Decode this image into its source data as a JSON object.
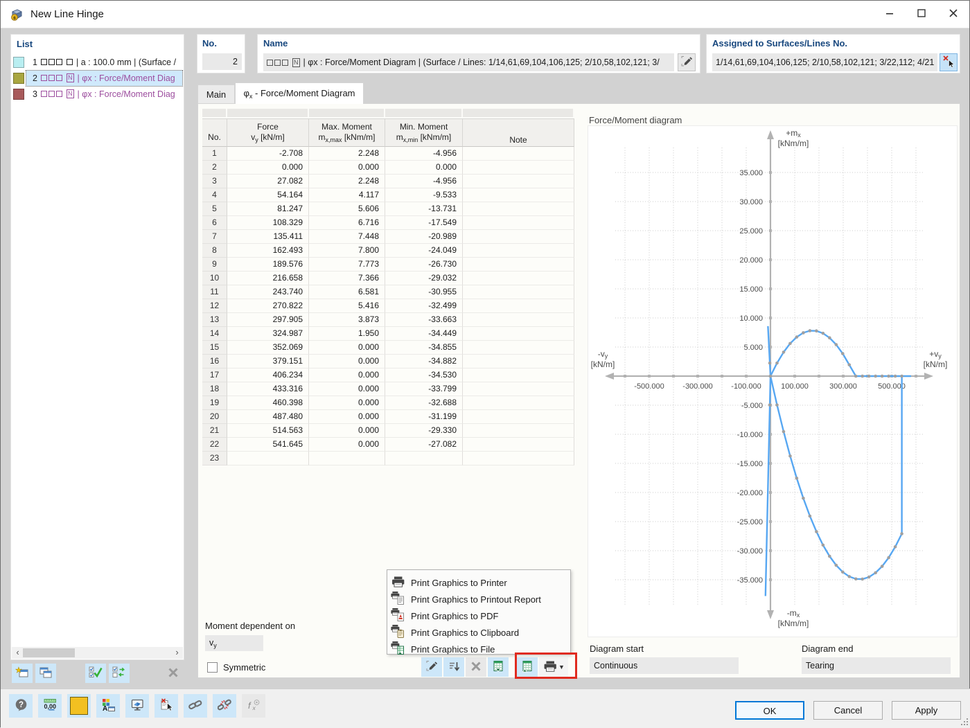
{
  "window": {
    "title": "New Line Hinge",
    "controls": [
      {
        "icon": "minimize-icon",
        "name": "minimize-button"
      },
      {
        "icon": "maximize-icon",
        "name": "maximize-button"
      },
      {
        "icon": "close-icon",
        "name": "close-button"
      }
    ]
  },
  "list": {
    "label": "List",
    "items": [
      {
        "num": "1",
        "swatch": "#b9eef1",
        "tag": "box",
        "text": "| a : 100.0 mm | (Surface /",
        "color": "#222222",
        "selected": false
      },
      {
        "num": "2",
        "swatch": "#a9a640",
        "tag": "N",
        "text": "| φx : Force/Moment Diag",
        "color": "#9c4d9e",
        "selected": true
      },
      {
        "num": "3",
        "swatch": "#a85a5b",
        "tag": "N",
        "text": "| φx : Force/Moment Diag",
        "color": "#9c4d9e",
        "selected": false
      }
    ]
  },
  "list_toolbar": [
    {
      "icon": "new-item-icon",
      "name": "new-hinge-button"
    },
    {
      "icon": "copy-item-icon",
      "name": "copy-hinge-button"
    },
    {
      "icon": "check-all-icon",
      "name": "select-all-button"
    },
    {
      "icon": "toggle-check-icon",
      "name": "toggle-selection-button"
    },
    {
      "icon": "delete-icon",
      "name": "delete-hinge-button",
      "disabled": true
    }
  ],
  "no_panel": {
    "label": "No.",
    "value": "2"
  },
  "name_panel": {
    "label": "Name",
    "tag": "N",
    "value": "| φx : Force/Moment Diagram | (Surface / Lines: 1/14,61,69,104,106,125; 2/10,58,102,121; 3/"
  },
  "assigned_panel": {
    "label": "Assigned to Surfaces/Lines No.",
    "value": "1/14,61,69,104,106,125; 2/10,58,102,121; 3/22,112; 4/21"
  },
  "tabs": [
    {
      "label": "Main"
    },
    {
      "pre": "φ",
      "sub": "x",
      "label": " - Force/Moment Diagram"
    }
  ],
  "table": {
    "columns": [
      {
        "l2": "No."
      },
      {
        "l1": "Force",
        "sym": "v",
        "sub": "y",
        "unit": "[kN/m]"
      },
      {
        "l1": "Max. Moment",
        "sym": "m",
        "sub": "x,max",
        "unit": "[kNm/m]"
      },
      {
        "l1": "Min. Moment",
        "sym": "m",
        "sub": "x,min",
        "unit": "[kNm/m]"
      },
      {
        "l2": "Note"
      }
    ],
    "rows": [
      [
        "1",
        "-2.708",
        "2.248",
        "-4.956",
        ""
      ],
      [
        "2",
        "0.000",
        "0.000",
        "0.000",
        ""
      ],
      [
        "3",
        "27.082",
        "2.248",
        "-4.956",
        ""
      ],
      [
        "4",
        "54.164",
        "4.117",
        "-9.533",
        ""
      ],
      [
        "5",
        "81.247",
        "5.606",
        "-13.731",
        ""
      ],
      [
        "6",
        "108.329",
        "6.716",
        "-17.549",
        ""
      ],
      [
        "7",
        "135.411",
        "7.448",
        "-20.989",
        ""
      ],
      [
        "8",
        "162.493",
        "7.800",
        "-24.049",
        ""
      ],
      [
        "9",
        "189.576",
        "7.773",
        "-26.730",
        ""
      ],
      [
        "10",
        "216.658",
        "7.366",
        "-29.032",
        ""
      ],
      [
        "11",
        "243.740",
        "6.581",
        "-30.955",
        ""
      ],
      [
        "12",
        "270.822",
        "5.416",
        "-32.499",
        ""
      ],
      [
        "13",
        "297.905",
        "3.873",
        "-33.663",
        ""
      ],
      [
        "14",
        "324.987",
        "1.950",
        "-34.449",
        ""
      ],
      [
        "15",
        "352.069",
        "0.000",
        "-34.855",
        ""
      ],
      [
        "16",
        "379.151",
        "0.000",
        "-34.882",
        ""
      ],
      [
        "17",
        "406.234",
        "0.000",
        "-34.530",
        ""
      ],
      [
        "18",
        "433.316",
        "0.000",
        "-33.799",
        ""
      ],
      [
        "19",
        "460.398",
        "0.000",
        "-32.688",
        ""
      ],
      [
        "20",
        "487.480",
        "0.000",
        "-31.199",
        ""
      ],
      [
        "21",
        "514.563",
        "0.000",
        "-29.330",
        ""
      ],
      [
        "22",
        "541.645",
        "0.000",
        "-27.082",
        ""
      ],
      [
        "23",
        "",
        "",
        "",
        ""
      ]
    ]
  },
  "moment_dependent": {
    "label": "Moment dependent on",
    "value_sym": "v",
    "value_sub": "y"
  },
  "symmetric": {
    "label": "Symmetric",
    "checked": false
  },
  "table_toolbar": [
    {
      "icon": "edit-note-icon",
      "name": "edit-table-button"
    },
    {
      "icon": "sort-icon",
      "name": "sort-table-button"
    },
    {
      "icon": "delete-icon",
      "name": "clear-table-button",
      "disabled": true
    },
    {
      "icon": "excel-import-icon",
      "name": "excel-import-button"
    },
    {
      "icon": "excel-export-icon",
      "name": "excel-export-button",
      "gap": 12
    },
    {
      "icon": "print-menu-icon",
      "name": "print-graphics-button",
      "caret": true
    }
  ],
  "context_menu": {
    "items": [
      {
        "icon": "print-printer-icon",
        "label": "Print Graphics to Printer"
      },
      {
        "icon": "print-report-icon",
        "label": "Print Graphics to Printout Report"
      },
      {
        "icon": "print-pdf-icon",
        "label": "Print Graphics to PDF"
      },
      {
        "icon": "print-clipboard-icon",
        "label": "Print Graphics to Clipboard"
      },
      {
        "icon": "print-file-icon",
        "label": "Print Graphics to File"
      }
    ]
  },
  "chart_data": {
    "type": "line",
    "title": "Force/Moment diagram",
    "x_axis": {
      "neg": {
        "main": "-v",
        "sub": "y"
      },
      "pos": {
        "main": "+v",
        "sub": "y"
      },
      "unit": "[kN/m]",
      "tick_labels": [
        -500,
        -300,
        -100,
        100,
        300,
        500
      ],
      "grid_min": -600,
      "grid_max": 600,
      "grid_step": 100
    },
    "y_axis": {
      "pos": {
        "main": "+m",
        "sub": "x"
      },
      "neg": {
        "main": "-m",
        "sub": "x"
      },
      "unit": "[kNm/m]",
      "tick_min": -35,
      "tick_max": 35,
      "tick_step": 5
    },
    "x": [
      -2.708,
      0,
      27.082,
      54.164,
      81.247,
      108.329,
      135.411,
      162.493,
      189.576,
      216.658,
      243.74,
      270.822,
      297.905,
      324.987,
      352.069,
      379.151,
      406.234,
      433.316,
      460.398,
      487.48,
      514.563,
      541.645
    ],
    "series": [
      {
        "name": "Max. Moment",
        "values": [
          2.248,
          0,
          2.248,
          4.117,
          5.606,
          6.716,
          7.448,
          7.8,
          7.773,
          7.366,
          6.581,
          5.416,
          3.873,
          1.95,
          0,
          0,
          0,
          0,
          0,
          0,
          0,
          0
        ]
      },
      {
        "name": "Min. Moment",
        "values": [
          -4.956,
          0,
          -4.956,
          -9.533,
          -13.731,
          -17.549,
          -20.989,
          -24.049,
          -26.73,
          -29.032,
          -30.955,
          -32.499,
          -33.663,
          -34.449,
          -34.855,
          -34.882,
          -34.53,
          -33.799,
          -32.688,
          -31.199,
          -29.33,
          -27.082
        ]
      }
    ],
    "diagram_start": "Continuous",
    "diagram_end": "Tearing",
    "tear_x": 541.645,
    "post_tear_x": 580,
    "start_extension": {
      "max_to_y": 8.6,
      "min_to_y": -37.8
    },
    "curve_color": "#57a7f2",
    "point_color": "#a0a0a0",
    "axis_color": "#b2b2b2",
    "grid_color": "#c9c9c9"
  },
  "diagram_start": {
    "label": "Diagram start",
    "value": "Continuous"
  },
  "diagram_end": {
    "label": "Diagram end",
    "value": "Tearing"
  },
  "bottom_toolbar": [
    {
      "icon": "help-icon",
      "name": "help-button"
    },
    {
      "icon": "units-icon",
      "name": "units-settings-button"
    },
    {
      "icon": "color-icon",
      "name": "color-button"
    },
    {
      "icon": "display-options-icon",
      "name": "display-properties-button"
    },
    {
      "icon": "view-icon",
      "name": "view-mode-button"
    },
    {
      "icon": "deselect-icon",
      "name": "deselect-button"
    },
    {
      "icon": "link-icon",
      "name": "link-button"
    },
    {
      "icon": "unlink-icon",
      "name": "unlink-button"
    },
    {
      "icon": "formula-icon",
      "name": "formula-button",
      "disabled": true
    }
  ],
  "buttons": {
    "ok": "OK",
    "cancel": "Cancel",
    "apply": "Apply"
  },
  "annotation_color": "#e02b1f"
}
